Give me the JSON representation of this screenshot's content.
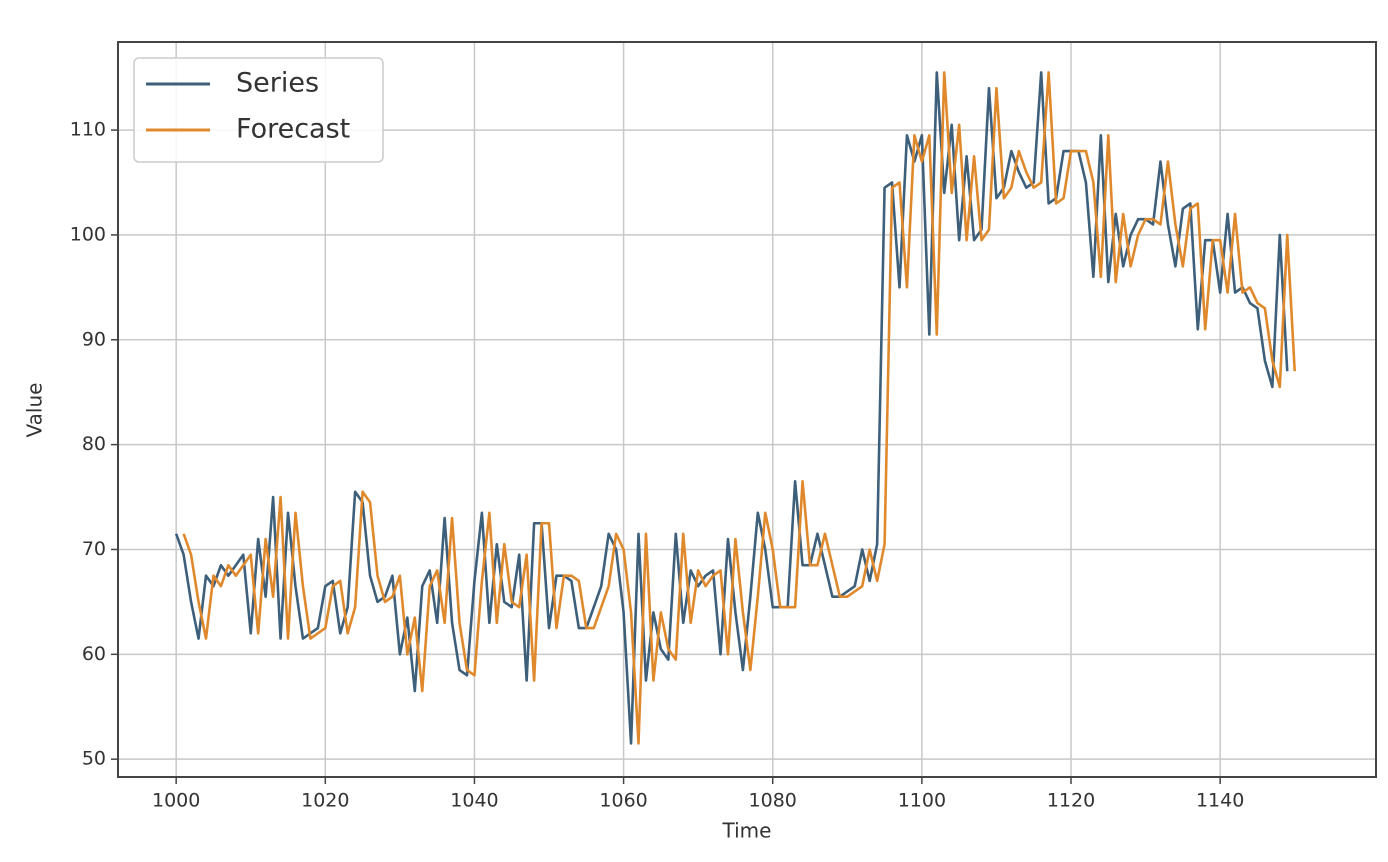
{
  "chart_data": {
    "type": "line",
    "x_label": "Time",
    "y_label": "Value",
    "x": [
      1000,
      1001,
      1002,
      1003,
      1004,
      1005,
      1006,
      1007,
      1008,
      1009,
      1010,
      1011,
      1012,
      1013,
      1014,
      1015,
      1016,
      1017,
      1018,
      1019,
      1020,
      1021,
      1022,
      1023,
      1024,
      1025,
      1026,
      1027,
      1028,
      1029,
      1030,
      1031,
      1032,
      1033,
      1034,
      1035,
      1036,
      1037,
      1038,
      1039,
      1040,
      1041,
      1042,
      1043,
      1044,
      1045,
      1046,
      1047,
      1048,
      1049,
      1050,
      1051,
      1052,
      1053,
      1054,
      1055,
      1056,
      1057,
      1058,
      1059,
      1060,
      1061,
      1062,
      1063,
      1064,
      1065,
      1066,
      1067,
      1068,
      1069,
      1070,
      1071,
      1072,
      1073,
      1074,
      1075,
      1076,
      1077,
      1078,
      1079,
      1080,
      1081,
      1082,
      1083,
      1084,
      1085,
      1086,
      1087,
      1088,
      1089,
      1090,
      1091,
      1092,
      1093,
      1094,
      1095,
      1096,
      1097,
      1098,
      1099,
      1100,
      1101,
      1102,
      1103,
      1104,
      1105,
      1106,
      1107,
      1108,
      1109,
      1110,
      1111,
      1112,
      1113,
      1114,
      1115,
      1116,
      1117,
      1118,
      1119,
      1120,
      1121,
      1122,
      1123,
      1124,
      1125,
      1126,
      1127,
      1128,
      1129,
      1130,
      1131,
      1132,
      1133,
      1134,
      1135,
      1136,
      1137,
      1138,
      1139,
      1140,
      1141,
      1142,
      1143,
      1144,
      1145,
      1146,
      1147,
      1148,
      1149,
      1150
    ],
    "series": [
      {
        "name": "Series",
        "color": "#3e5f7a",
        "values": [
          71.5,
          69.5,
          65,
          61.5,
          67.5,
          66.5,
          68.5,
          67.5,
          68.5,
          69.5,
          62,
          71,
          65.5,
          75,
          61.5,
          73.5,
          66.5,
          61.5,
          62,
          62.5,
          66.5,
          67,
          62,
          64.5,
          75.5,
          74.5,
          67.5,
          65,
          65.5,
          67.5,
          60,
          63.5,
          56.5,
          66.5,
          68,
          63,
          73,
          63,
          58.5,
          58,
          67,
          73.5,
          63,
          70.5,
          65,
          64.5,
          69.5,
          57.5,
          72.5,
          72.5,
          62.5,
          67.5,
          67.5,
          67,
          62.5,
          62.5,
          64.5,
          66.5,
          71.5,
          70,
          64,
          51.5,
          71.5,
          57.5,
          64,
          60.5,
          59.5,
          71.5,
          63,
          68,
          66.5,
          67.5,
          68,
          60,
          71,
          64,
          58.5,
          65.5,
          73.5,
          70,
          64.5,
          64.5,
          64.5,
          76.5,
          68.5,
          68.5,
          71.5,
          68.5,
          65.5,
          65.5,
          66,
          66.5,
          70,
          67,
          70.5,
          104.5,
          105,
          95,
          109.5,
          107,
          109.5,
          90.5,
          115.5,
          104,
          110.5,
          99.5,
          107.5,
          99.5,
          100.5,
          114,
          103.5,
          104.5,
          108,
          106,
          104.5,
          105,
          115.5,
          103,
          103.5,
          108,
          108,
          108,
          105,
          96,
          109.5,
          95.5,
          102,
          97,
          100,
          101.5,
          101.5,
          101,
          107,
          101,
          97,
          102.5,
          103,
          91,
          99.5,
          99.5,
          94.5,
          102,
          94.5,
          95,
          93.5,
          93,
          88,
          85.5,
          100,
          87,
          null
        ]
      },
      {
        "name": "Forecast",
        "color": "#e0892c",
        "values": [
          null,
          71.5,
          69.5,
          65,
          61.5,
          67.5,
          66.5,
          68.5,
          67.5,
          68.5,
          69.5,
          62,
          71,
          65.5,
          75,
          61.5,
          73.5,
          66.5,
          61.5,
          62,
          62.5,
          66.5,
          67,
          62,
          64.5,
          75.5,
          74.5,
          67.5,
          65,
          65.5,
          67.5,
          60,
          63.5,
          56.5,
          66.5,
          68,
          63,
          73,
          63,
          58.5,
          58,
          67,
          73.5,
          63,
          70.5,
          65,
          64.5,
          69.5,
          57.5,
          72.5,
          72.5,
          62.5,
          67.5,
          67.5,
          67,
          62.5,
          62.5,
          64.5,
          66.5,
          71.5,
          70,
          64,
          51.5,
          71.5,
          57.5,
          64,
          60.5,
          59.5,
          71.5,
          63,
          68,
          66.5,
          67.5,
          68,
          60,
          71,
          64,
          58.5,
          65.5,
          73.5,
          70,
          64.5,
          64.5,
          64.5,
          76.5,
          68.5,
          68.5,
          71.5,
          68.5,
          65.5,
          65.5,
          66,
          66.5,
          70,
          67,
          70.5,
          104.5,
          105,
          95,
          109.5,
          107,
          109.5,
          90.5,
          115.5,
          104,
          110.5,
          99.5,
          107.5,
          99.5,
          100.5,
          114,
          103.5,
          104.5,
          108,
          106,
          104.5,
          105,
          115.5,
          103,
          103.5,
          108,
          108,
          108,
          105,
          96,
          109.5,
          95.5,
          102,
          97,
          100,
          101.5,
          101.5,
          101,
          107,
          101,
          97,
          102.5,
          103,
          91,
          99.5,
          99.5,
          94.5,
          102,
          94.5,
          95,
          93.5,
          93,
          88,
          85.5,
          100,
          87
        ]
      }
    ],
    "xlim": [
      992.2,
      1160.9
    ],
    "ylim": [
      48.3,
      118.4
    ],
    "xticks": [
      1000,
      1020,
      1040,
      1060,
      1080,
      1100,
      1120,
      1140
    ],
    "yticks": [
      50,
      60,
      70,
      80,
      90,
      100,
      110
    ],
    "grid": true,
    "legend": "upper-left"
  }
}
